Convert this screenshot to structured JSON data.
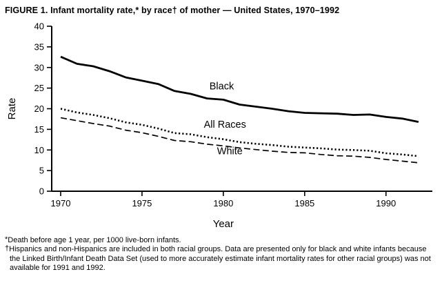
{
  "title": "FIGURE 1. Infant mortality rate,* by race† of mother — United States, 1970–1992",
  "footnotes": [
    {
      "marker": "*",
      "text": "Death before age 1 year, per 1000 live-born infants."
    },
    {
      "marker": "†",
      "text": "Hispanics and non-Hispanics are included in both racial groups. Data are presented only for black and white infants because the Linked Birth/Infant Death Data Set (used to more accurately estimate infant mortality rates for other racial groups) was not available for 1991 and 1992."
    }
  ],
  "chart_data": {
    "type": "line",
    "title": "FIGURE 1. Infant mortality rate,* by race† of mother — United States, 1970–1992",
    "xlabel": "Year",
    "ylabel": "Rate",
    "xlim": [
      1969.45,
      1992.85
    ],
    "ylim": [
      0,
      40
    ],
    "xticks": [
      1970,
      1975,
      1980,
      1985,
      1990
    ],
    "yticks": [
      0,
      5,
      10,
      15,
      20,
      25,
      30,
      35,
      40
    ],
    "grid": false,
    "legend": "inline-labels",
    "x": [
      1970,
      1971,
      1972,
      1973,
      1974,
      1975,
      1976,
      1977,
      1978,
      1979,
      1980,
      1981,
      1982,
      1983,
      1984,
      1985,
      1986,
      1987,
      1988,
      1989,
      1990,
      1991,
      1992
    ],
    "series": [
      {
        "name": "Black",
        "style": "solid",
        "values": [
          32.6,
          30.9,
          30.3,
          29.1,
          27.6,
          26.8,
          26.0,
          24.3,
          23.6,
          22.5,
          22.2,
          21.0,
          20.5,
          20.0,
          19.4,
          19.0,
          18.9,
          18.8,
          18.5,
          18.6,
          18.0,
          17.6,
          16.8
        ]
      },
      {
        "name": "All Races",
        "style": "dotted",
        "values": [
          20.0,
          19.1,
          18.5,
          17.7,
          16.7,
          16.1,
          15.2,
          14.1,
          13.8,
          13.1,
          12.6,
          11.9,
          11.5,
          11.2,
          10.8,
          10.6,
          10.4,
          10.1,
          10.0,
          9.8,
          9.2,
          8.9,
          8.5
        ]
      },
      {
        "name": "White",
        "style": "dashed",
        "values": [
          17.8,
          17.1,
          16.4,
          15.8,
          14.8,
          14.2,
          13.3,
          12.3,
          12.0,
          11.4,
          11.0,
          10.5,
          10.1,
          9.7,
          9.4,
          9.3,
          8.9,
          8.6,
          8.5,
          8.2,
          7.7,
          7.3,
          6.9
        ]
      }
    ],
    "annotations": [
      {
        "text": "Black",
        "x": 1979.9,
        "y": 25.5
      },
      {
        "text": "All Races",
        "x": 1980.1,
        "y": 16.2
      },
      {
        "text": "White",
        "x": 1980.4,
        "y": 9.8
      }
    ]
  }
}
